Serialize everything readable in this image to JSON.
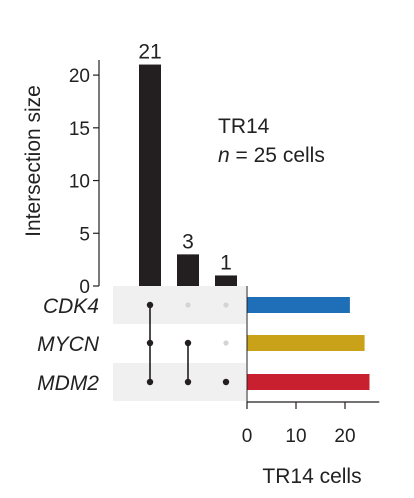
{
  "chart_data": {
    "type": "upset",
    "ylabel": "Intersection size",
    "yticks": [
      0,
      5,
      10,
      15,
      20
    ],
    "ylim": [
      0,
      22
    ],
    "intersections": [
      {
        "sets": [
          "CDK4",
          "MYCN",
          "MDM2"
        ],
        "size": 21,
        "label": "21"
      },
      {
        "sets": [
          "MYCN",
          "MDM2"
        ],
        "size": 3,
        "label": "3"
      },
      {
        "sets": [
          "MDM2"
        ],
        "size": 1,
        "label": "1"
      }
    ],
    "sets": [
      {
        "name": "CDK4",
        "count": 21,
        "color": "#1f6fb8"
      },
      {
        "name": "MYCN",
        "count": 24,
        "color": "#c9a21a"
      },
      {
        "name": "MDM2",
        "count": 25,
        "color": "#c8202e"
      }
    ],
    "set_size_xlabel": "TR14 cells",
    "set_size_xticks": [
      0,
      10,
      20
    ],
    "set_size_xlim": [
      0,
      27
    ],
    "annotation": {
      "line1": "TR14",
      "line2_var": "n",
      "line2_rest": " = 25 cells"
    },
    "grid": false
  },
  "colors": {
    "bar": "#231f20",
    "matrix_band": "#f0f0f0",
    "dot_active": "#231f20",
    "dot_inactive": "#d4d4d4"
  }
}
